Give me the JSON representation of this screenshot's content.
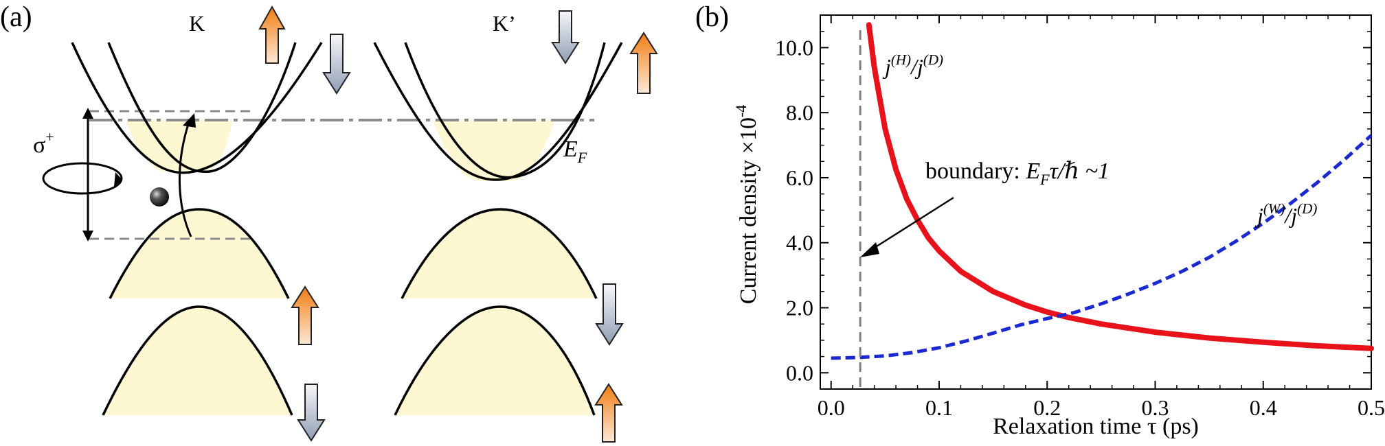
{
  "panel_a": {
    "label": "(a)",
    "valley_k": "K",
    "valley_kprime": "K’",
    "polarization_base": "σ",
    "polarization_sup": "+",
    "fermi_base": "E",
    "fermi_sub": "F",
    "colors": {
      "band": "#000000",
      "fill": "#fdf8d2",
      "arrow_up": "#f08a24",
      "arrow_down": "#9aa6b8",
      "fermi_line": "#8c8c8c"
    },
    "icons": [
      "spin-up-arrow-icon",
      "spin-down-arrow-icon",
      "circular-polarization-icon",
      "electron-icon"
    ]
  },
  "panel_b": {
    "label": "(b)",
    "boundary_annotation": {
      "text_prefix": "boundary: ",
      "ef": "E",
      "ef_sub": "F",
      "rest": "τ/ℏ ~1"
    },
    "curve_label_h": {
      "j": "j",
      "sup1": "(H)",
      "slash": "/",
      "sup2": "(D)"
    },
    "curve_label_w": {
      "j": "j",
      "sup1": "(W)",
      "slash": "/",
      "sup2": "(D)"
    }
  },
  "chart_data": {
    "type": "line",
    "title": "",
    "xlabel": "Relaxation time τ (ps)",
    "ylabel": "Current density ×10",
    "ylabel_exponent": "-4",
    "xlim": [
      -0.01,
      0.5
    ],
    "ylim": [
      -0.5,
      11.0
    ],
    "xticks": [
      0.0,
      0.1,
      0.2,
      0.3,
      0.4,
      0.5
    ],
    "xtick_labels": [
      "0.0",
      "0.1",
      "0.2",
      "0.3",
      "0.4",
      "0.5"
    ],
    "yticks": [
      0.0,
      2.0,
      4.0,
      6.0,
      8.0,
      10.0
    ],
    "ytick_labels": [
      "0.0",
      "2.0",
      "4.0",
      "6.0",
      "8.0",
      "10.0"
    ],
    "boundary_x": 0.027,
    "grid": false,
    "series": [
      {
        "key": "H",
        "color": "#e8121b",
        "style": "solid",
        "x": [
          0.035,
          0.04,
          0.05,
          0.06,
          0.07,
          0.08,
          0.09,
          0.1,
          0.12,
          0.15,
          0.18,
          0.2,
          0.22,
          0.25,
          0.3,
          0.35,
          0.4,
          0.45,
          0.5
        ],
        "y": [
          10.7,
          9.4,
          7.5,
          6.25,
          5.35,
          4.7,
          4.15,
          3.75,
          3.12,
          2.5,
          2.08,
          1.87,
          1.7,
          1.5,
          1.25,
          1.07,
          0.94,
          0.83,
          0.75
        ]
      },
      {
        "key": "W",
        "color": "#1b2ad0",
        "style": "dashed",
        "x": [
          0.0,
          0.025,
          0.05,
          0.075,
          0.1,
          0.125,
          0.15,
          0.175,
          0.2,
          0.225,
          0.25,
          0.275,
          0.3,
          0.325,
          0.35,
          0.375,
          0.4,
          0.425,
          0.45,
          0.475,
          0.5
        ],
        "y": [
          0.45,
          0.47,
          0.52,
          0.62,
          0.77,
          0.98,
          1.22,
          1.47,
          1.67,
          1.85,
          2.12,
          2.42,
          2.75,
          3.12,
          3.55,
          4.05,
          4.6,
          5.2,
          5.85,
          6.55,
          7.3
        ]
      }
    ]
  }
}
